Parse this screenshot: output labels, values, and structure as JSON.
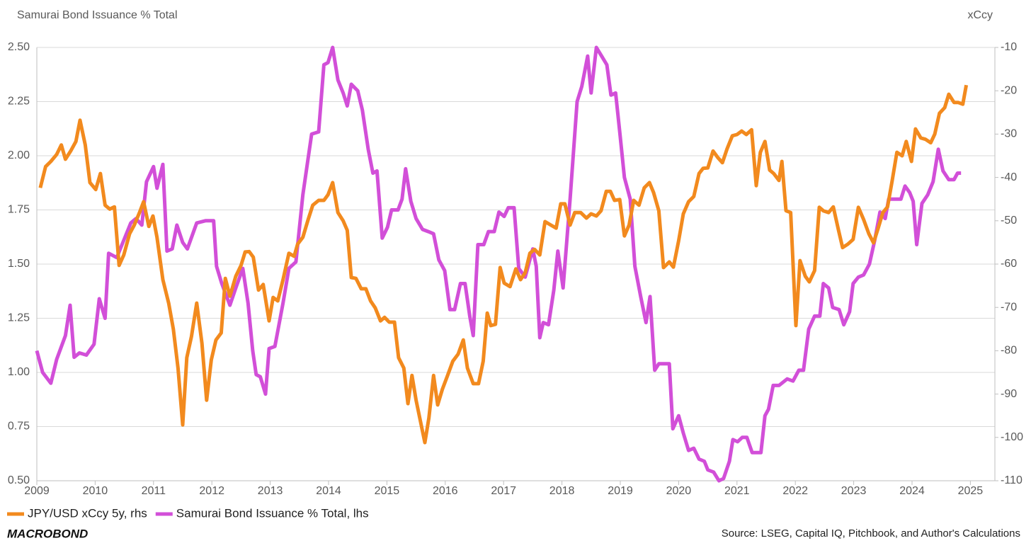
{
  "chart_data": {
    "type": "line",
    "title": "Samurai Bond Issuance % Total",
    "y2_title": "xCcy",
    "source": "Source: LSEG, Capital IQ, Pitchbook, and Author's Calculations",
    "logo": "MACROBOND",
    "xlim": [
      2009,
      2025.42
    ],
    "xticks": [
      2009,
      2010,
      2011,
      2012,
      2013,
      2014,
      2015,
      2016,
      2017,
      2018,
      2019,
      2020,
      2021,
      2022,
      2023,
      2024,
      2025
    ],
    "ylim": [
      0.5,
      2.5
    ],
    "yticks": [
      {
        "value": 0.5,
        "label": "0.50"
      },
      {
        "value": 0.75,
        "label": "0.75"
      },
      {
        "value": 1,
        "label": "1.00"
      },
      {
        "value": 1.25,
        "label": "1.25"
      },
      {
        "value": 1.5,
        "label": "1.50"
      },
      {
        "value": 1.75,
        "label": "1.75"
      },
      {
        "value": 2,
        "label": "2.00"
      },
      {
        "value": 2.25,
        "label": "2.25"
      },
      {
        "value": 2.5,
        "label": "2.50"
      }
    ],
    "y2lim": [
      -110,
      -10
    ],
    "y2ticks": [
      -110,
      -100,
      -90,
      -80,
      -70,
      -60,
      -50,
      -40,
      -30,
      -20,
      -10
    ],
    "grid": true,
    "legend": "bottom-left",
    "series": [
      {
        "name": "JPY/USD xCcy 5y, rhs",
        "color": "#f28a1e",
        "axis": "y2",
        "x": [
          2009.06,
          2009.15,
          2009.24,
          2009.34,
          2009.42,
          2009.49,
          2009.58,
          2009.67,
          2009.74,
          2009.83,
          2009.91,
          2010.01,
          2010.09,
          2010.17,
          2010.25,
          2010.33,
          2010.41,
          2010.49,
          2010.59,
          2010.67,
          2010.76,
          2010.83,
          2010.92,
          2010.99,
          2011.06,
          2011.16,
          2011.26,
          2011.34,
          2011.42,
          2011.5,
          2011.57,
          2011.65,
          2011.74,
          2011.83,
          2011.91,
          2011.99,
          2012.07,
          2012.16,
          2012.23,
          2012.31,
          2012.41,
          2012.5,
          2012.57,
          2012.64,
          2012.71,
          2012.8,
          2012.88,
          2012.98,
          2013.05,
          2013.13,
          2013.22,
          2013.32,
          2013.41,
          2013.47,
          2013.56,
          2013.65,
          2013.73,
          2013.83,
          2013.92,
          2013.99,
          2014.07,
          2014.16,
          2014.25,
          2014.32,
          2014.39,
          2014.47,
          2014.56,
          2014.64,
          2014.72,
          2014.8,
          2014.89,
          2014.96,
          2015.04,
          2015.13,
          2015.2,
          2015.29,
          2015.36,
          2015.43,
          2015.5,
          2015.6,
          2015.65,
          2015.72,
          2015.8,
          2015.87,
          2015.95,
          2016.04,
          2016.13,
          2016.22,
          2016.31,
          2016.38,
          2016.48,
          2016.57,
          2016.65,
          2016.72,
          2016.78,
          2016.86,
          2016.94,
          2017.01,
          2017.11,
          2017.21,
          2017.29,
          2017.37,
          2017.45,
          2017.53,
          2017.62,
          2017.71,
          2017.81,
          2017.9,
          2017.98,
          2018.05,
          2018.14,
          2018.22,
          2018.32,
          2018.42,
          2018.5,
          2018.59,
          2018.67,
          2018.76,
          2018.83,
          2018.9,
          2018.99,
          2019.07,
          2019.15,
          2019.23,
          2019.32,
          2019.41,
          2019.5,
          2019.57,
          2019.66,
          2019.74,
          2019.84,
          2019.91,
          2020.0,
          2020.08,
          2020.17,
          2020.26,
          2020.35,
          2020.42,
          2020.5,
          2020.59,
          2020.67,
          2020.75,
          2020.83,
          2020.92,
          2021.0,
          2021.08,
          2021.16,
          2021.25,
          2021.33,
          2021.4,
          2021.48,
          2021.56,
          2021.63,
          2021.72,
          2021.77,
          2021.84,
          2021.92,
          2022.01,
          2022.08,
          2022.17,
          2022.24,
          2022.33,
          2022.41,
          2022.48,
          2022.57,
          2022.65,
          2022.74,
          2022.81,
          2022.9,
          2022.99,
          2023.08,
          2023.17,
          2023.26,
          2023.34,
          2023.42,
          2023.5,
          2023.58,
          2023.66,
          2023.74,
          2023.83,
          2023.9,
          2023.99,
          2024.06,
          2024.15,
          2024.23,
          2024.32,
          2024.39,
          2024.47,
          2024.56,
          2024.63,
          2024.72,
          2024.79,
          2024.87,
          2024.93
        ],
        "values": [
          -42.4,
          -37.5,
          -36.3,
          -34.7,
          -32.5,
          -35.8,
          -33.9,
          -31.7,
          -26.8,
          -32.5,
          -41.2,
          -42.8,
          -39.1,
          -46.4,
          -47.3,
          -46.8,
          -60.3,
          -57.9,
          -53.0,
          -51.0,
          -48.1,
          -45.6,
          -51.3,
          -48.9,
          -53.8,
          -63.6,
          -69.0,
          -75.0,
          -84.0,
          -97.1,
          -81.6,
          -76.7,
          -69.0,
          -78.3,
          -91.4,
          -82.1,
          -77.5,
          -75.9,
          -63.3,
          -67.4,
          -62.8,
          -60.3,
          -57.2,
          -57.1,
          -58.4,
          -66.0,
          -64.7,
          -73.1,
          -67.7,
          -68.5,
          -63.6,
          -57.5,
          -58.2,
          -55.4,
          -53.8,
          -49.7,
          -46.4,
          -45.3,
          -45.3,
          -44.0,
          -41.2,
          -48.1,
          -50.0,
          -52.2,
          -63.1,
          -63.3,
          -65.7,
          -65.7,
          -68.5,
          -70.1,
          -73.1,
          -72.3,
          -73.4,
          -73.4,
          -81.6,
          -84.0,
          -92.2,
          -85.7,
          -91.4,
          -97.9,
          -101.2,
          -95.5,
          -85.7,
          -92.5,
          -88.9,
          -85.7,
          -82.4,
          -80.8,
          -77.5,
          -84.0,
          -87.6,
          -87.6,
          -82.4,
          -71.3,
          -74.2,
          -73.9,
          -60.8,
          -64.4,
          -65.2,
          -61.1,
          -63.6,
          -62.0,
          -57.5,
          -56.6,
          -57.9,
          -50.2,
          -51.0,
          -51.7,
          -46.1,
          -46.1,
          -51.0,
          -48.1,
          -48.1,
          -49.4,
          -48.4,
          -48.9,
          -47.7,
          -43.2,
          -43.2,
          -45.3,
          -45.1,
          -53.5,
          -51.0,
          -45.3,
          -46.4,
          -42.4,
          -41.2,
          -43.5,
          -47.7,
          -60.8,
          -59.5,
          -60.7,
          -54.6,
          -48.4,
          -45.6,
          -44.4,
          -39.1,
          -37.9,
          -37.8,
          -33.9,
          -35.4,
          -36.6,
          -33.4,
          -30.4,
          -30.1,
          -29.3,
          -30.1,
          -29.0,
          -41.9,
          -34.2,
          -31.7,
          -38.3,
          -39.1,
          -40.7,
          -36.3,
          -47.7,
          -48.1,
          -74.2,
          -59.2,
          -62.8,
          -64.1,
          -61.5,
          -46.9,
          -47.7,
          -48.1,
          -46.8,
          -52.2,
          -56.2,
          -55.4,
          -54.3,
          -46.9,
          -49.7,
          -53.0,
          -55.1,
          -51.7,
          -48.1,
          -46.8,
          -40.7,
          -34.2,
          -35.0,
          -31.7,
          -36.3,
          -28.8,
          -30.9,
          -31.2,
          -32.0,
          -30.0,
          -25.2,
          -23.9,
          -20.8,
          -22.7,
          -22.7,
          -23.1,
          -18.7
        ]
      },
      {
        "name": "Samurai Bond Issuance % Total, lhs",
        "color": "#d24fd8",
        "x": [
          2009.0,
          2009.1,
          2009.24,
          2009.34,
          2009.49,
          2009.57,
          2009.64,
          2009.73,
          2009.85,
          2009.98,
          2010.07,
          2010.17,
          2010.23,
          2010.37,
          2010.46,
          2010.61,
          2010.7,
          2010.8,
          2010.88,
          2011.0,
          2011.06,
          2011.16,
          2011.23,
          2011.32,
          2011.4,
          2011.5,
          2011.58,
          2011.74,
          2011.89,
          2012.03,
          2012.08,
          2012.17,
          2012.31,
          2012.41,
          2012.53,
          2012.62,
          2012.7,
          2012.76,
          2012.83,
          2012.92,
          2012.98,
          2013.08,
          2013.22,
          2013.32,
          2013.44,
          2013.56,
          2013.71,
          2013.83,
          2013.92,
          2013.99,
          2014.07,
          2014.16,
          2014.25,
          2014.32,
          2014.39,
          2014.5,
          2014.58,
          2014.68,
          2014.76,
          2014.83,
          2014.92,
          2015.01,
          2015.08,
          2015.19,
          2015.26,
          2015.32,
          2015.41,
          2015.5,
          2015.61,
          2015.71,
          2015.8,
          2015.89,
          2015.99,
          2016.08,
          2016.16,
          2016.26,
          2016.34,
          2016.42,
          2016.48,
          2016.56,
          2016.66,
          2016.74,
          2016.84,
          2016.92,
          2017.01,
          2017.08,
          2017.18,
          2017.26,
          2017.37,
          2017.5,
          2017.56,
          2017.62,
          2017.68,
          2017.77,
          2017.86,
          2017.93,
          2018.02,
          2018.14,
          2018.26,
          2018.34,
          2018.44,
          2018.5,
          2018.59,
          2018.68,
          2018.77,
          2018.84,
          2018.92,
          2018.99,
          2019.07,
          2019.17,
          2019.25,
          2019.35,
          2019.44,
          2019.51,
          2019.59,
          2019.66,
          2019.78,
          2019.84,
          2019.9,
          2020.0,
          2020.08,
          2020.17,
          2020.26,
          2020.35,
          2020.44,
          2020.5,
          2020.6,
          2020.69,
          2020.77,
          2020.87,
          2020.93,
          2021.01,
          2021.09,
          2021.17,
          2021.26,
          2021.41,
          2021.48,
          2021.54,
          2021.62,
          2021.72,
          2021.86,
          2021.96,
          2022.06,
          2022.14,
          2022.23,
          2022.33,
          2022.42,
          2022.48,
          2022.57,
          2022.64,
          2022.75,
          2022.83,
          2022.93,
          2022.99,
          2023.08,
          2023.17,
          2023.27,
          2023.36,
          2023.45,
          2023.54,
          2023.6,
          2023.68,
          2023.81,
          2023.88,
          2023.96,
          2024.02,
          2024.08,
          2024.17,
          2024.27,
          2024.36,
          2024.45,
          2024.53,
          2024.63,
          2024.72,
          2024.78,
          2024.84
        ],
        "values": [
          1.1,
          1.0,
          0.95,
          1.06,
          1.17,
          1.31,
          1.07,
          1.09,
          1.08,
          1.13,
          1.34,
          1.25,
          1.55,
          1.53,
          1.59,
          1.69,
          1.71,
          1.68,
          1.88,
          1.95,
          1.85,
          1.96,
          1.56,
          1.57,
          1.68,
          1.6,
          1.57,
          1.69,
          1.7,
          1.7,
          1.49,
          1.41,
          1.31,
          1.39,
          1.48,
          1.32,
          1.1,
          0.99,
          0.98,
          0.9,
          1.11,
          1.12,
          1.32,
          1.48,
          1.51,
          1.82,
          2.1,
          2.11,
          2.42,
          2.43,
          2.5,
          2.35,
          2.29,
          2.23,
          2.33,
          2.3,
          2.21,
          2.03,
          1.92,
          1.93,
          1.62,
          1.67,
          1.75,
          1.75,
          1.8,
          1.94,
          1.79,
          1.71,
          1.66,
          1.65,
          1.64,
          1.52,
          1.47,
          1.29,
          1.29,
          1.41,
          1.41,
          1.26,
          1.17,
          1.59,
          1.59,
          1.65,
          1.65,
          1.74,
          1.72,
          1.76,
          1.76,
          1.48,
          1.44,
          1.57,
          1.49,
          1.16,
          1.23,
          1.22,
          1.38,
          1.56,
          1.39,
          1.8,
          2.25,
          2.32,
          2.46,
          2.29,
          2.5,
          2.46,
          2.42,
          2.28,
          2.29,
          2.11,
          1.9,
          1.8,
          1.49,
          1.35,
          1.23,
          1.35,
          1.01,
          1.04,
          1.04,
          1.04,
          0.74,
          0.8,
          0.72,
          0.64,
          0.65,
          0.6,
          0.59,
          0.55,
          0.54,
          0.5,
          0.51,
          0.59,
          0.69,
          0.68,
          0.7,
          0.7,
          0.63,
          0.63,
          0.8,
          0.83,
          0.94,
          0.94,
          0.97,
          0.96,
          1.01,
          1.01,
          1.2,
          1.26,
          1.26,
          1.41,
          1.39,
          1.3,
          1.29,
          1.22,
          1.28,
          1.41,
          1.44,
          1.45,
          1.5,
          1.61,
          1.74,
          1.71,
          1.8,
          1.8,
          1.8,
          1.86,
          1.83,
          1.79,
          1.59,
          1.78,
          1.82,
          1.88,
          2.03,
          1.93,
          1.89,
          1.89,
          1.92,
          1.92
        ]
      }
    ]
  }
}
